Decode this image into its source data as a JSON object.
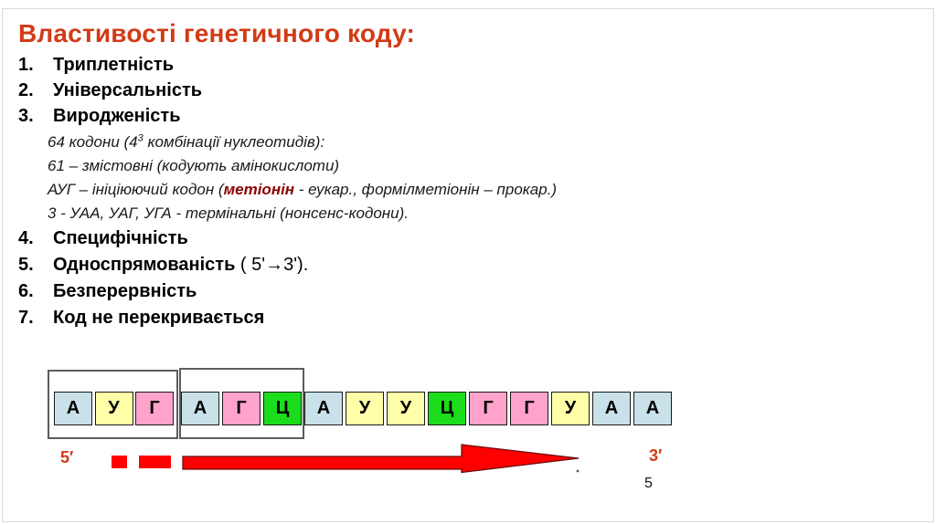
{
  "slide": {
    "title": "Властивості генетичного коду:",
    "items": [
      {
        "num": "1.",
        "label": "Триплетність"
      },
      {
        "num": "2.",
        "label": "Універсальність"
      },
      {
        "num": "3.",
        "label": "Виродженість"
      },
      {
        "num": "4.",
        "label": "Специфічність"
      },
      {
        "num": "5.",
        "label": "Односпрямованість",
        "suffix": " ( 5'→3')."
      },
      {
        "num": "6.",
        "label": "Безперервність"
      },
      {
        "num": "7.",
        "label": "Код не перекривається"
      }
    ],
    "sub_lines": {
      "line1_pre": "64 кодони (4",
      "line1_sup": "3",
      "line1_post": " комбінації нуклеотидів):",
      "line2": "61 – змістовні (кодують амінокислоти)",
      "line3_pre": "АУГ – ініціюючий кодон (",
      "line3_highlight": "метіонін",
      "line3_post": " - еукар., формілметіонін – прокар.)",
      "line4": "3 - УАА, УАГ, УГА - термінальні (нонсенс-кодони)."
    },
    "sequence": [
      {
        "letter": "А",
        "color": "#c9e1e8"
      },
      {
        "letter": "У",
        "color": "#ffffaa"
      },
      {
        "letter": "Г",
        "color": "#ffa3cb"
      },
      {
        "letter": "А",
        "color": "#c9e1e8"
      },
      {
        "letter": "Г",
        "color": "#ffa3cb"
      },
      {
        "letter": "Ц",
        "color": "#1bdd1b"
      },
      {
        "letter": "А",
        "color": "#c9e1e8"
      },
      {
        "letter": "У",
        "color": "#ffffaa"
      },
      {
        "letter": "У",
        "color": "#ffffaa"
      },
      {
        "letter": "Ц",
        "color": "#1bdd1b"
      },
      {
        "letter": "Г",
        "color": "#ffa3cb"
      },
      {
        "letter": "Г",
        "color": "#ffa3cb"
      },
      {
        "letter": "У",
        "color": "#ffffaa"
      },
      {
        "letter": "А",
        "color": "#c9e1e8"
      },
      {
        "letter": "А",
        "color": "#c9e1e8"
      }
    ],
    "labels": {
      "five_prime": "5′",
      "three_prime": "3′"
    },
    "page_number": "5",
    "colors": {
      "title_red": "#d23b16",
      "highlight_red": "#8b0000",
      "arrow_red": "#ff0000",
      "arrow_outline": "#6b0f0f"
    }
  }
}
